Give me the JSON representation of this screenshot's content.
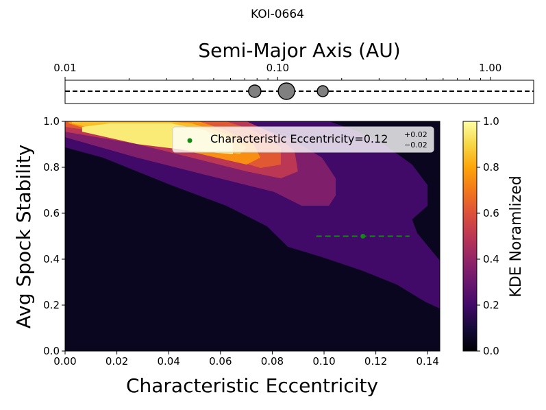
{
  "chart_data": [
    {
      "type": "strip",
      "title": "KOI-0664",
      "xlabel": "Semi-Major Axis (AU)",
      "xscale": "log",
      "xlim": [
        0.01,
        1.6
      ],
      "xticks": [
        0.01,
        {
          "value": 0.1,
          "label": "0.10"
        },
        {
          "value": 1,
          "label": "1.00"
        }
      ],
      "xticks_minor": [
        0.02,
        0.03,
        0.04,
        0.05,
        0.06,
        0.07,
        0.08,
        0.09,
        0.2,
        0.3,
        0.4,
        0.5,
        0.6,
        0.7,
        0.8,
        0.9
      ],
      "x": [
        0.078,
        0.11,
        0.163
      ],
      "sizes": [
        9,
        12,
        8
      ],
      "color": "#808080"
    },
    {
      "type": "contour",
      "xlabel": "Characteristic Eccentricity",
      "ylabel": "Avg Spock Stability",
      "xlim": [
        0,
        0.1447
      ],
      "ylim": [
        0,
        1
      ],
      "xticks": [
        {
          "value": 0,
          "label": "0.00"
        },
        0.02,
        0.04,
        0.06,
        0.08,
        {
          "value": 0.1,
          "label": "0.10"
        },
        0.12,
        0.14
      ],
      "yticks": [
        {
          "value": 0,
          "label": "0.0"
        },
        0.2,
        0.4,
        0.6,
        0.8,
        {
          "value": 1,
          "label": "1.0"
        }
      ],
      "colormap": [
        "#000004",
        "#160b39",
        "#420a68",
        "#6a176e",
        "#932667",
        "#bc3754",
        "#dd513a",
        "#f37819",
        "#fca50a",
        "#f6d746",
        "#fcffa4"
      ],
      "contours": [
        {
          "level": 0.05,
          "x": [
            0,
            0.1447,
            0.1447,
            0
          ],
          "y": [
            0,
            0,
            1,
            1
          ]
        },
        {
          "level": 0.2,
          "x": [
            0,
            0,
            0.0146,
            0.041,
            0.0622,
            0.078,
            0.086,
            0.0992,
            0.115,
            0.128,
            0.139,
            0.1447,
            0.1447,
            0.136,
            0.134,
            0.14,
            0.14,
            0.134,
            0.123,
            0.112,
            0.102
          ],
          "y": [
            1,
            0.887,
            0.842,
            0.722,
            0.633,
            0.543,
            0.454,
            0.409,
            0.349,
            0.29,
            0.215,
            0.185,
            0.394,
            0.513,
            0.573,
            0.633,
            0.722,
            0.812,
            0.901,
            0.961,
            1
          ]
        },
        {
          "level": 0.35,
          "x": [
            0,
            0,
            0.0278,
            0.0542,
            0.0807,
            0.0913,
            0.1019,
            0.1045,
            0.1045,
            0.0992,
            0.086,
            0.0675
          ],
          "y": [
            1,
            0.931,
            0.842,
            0.767,
            0.693,
            0.633,
            0.633,
            0.678,
            0.752,
            0.842,
            0.931,
            1
          ]
        },
        {
          "level": 0.5,
          "x": [
            0,
            0,
            0.0278,
            0.0542,
            0.0701,
            0.0833,
            0.0899,
            0.0886,
            0.0807,
            0.0701
          ],
          "y": [
            1,
            0.955,
            0.901,
            0.827,
            0.782,
            0.752,
            0.782,
            0.872,
            0.946,
            1
          ]
        },
        {
          "level": 0.62,
          "x": [
            0,
            0,
            0.0278,
            0.0622,
            0.0754,
            0.0833,
            0.0833,
            0.0728,
            0.0622
          ],
          "y": [
            1,
            0.976,
            0.931,
            0.842,
            0.797,
            0.812,
            0.887,
            0.961,
            1
          ]
        },
        {
          "level": 0.75,
          "x": [
            0.0013,
            0.0013,
            0.0146,
            0.041,
            0.0701,
            0.0754,
            0.0728,
            0.0622,
            0.0516
          ],
          "y": [
            1,
            0.991,
            0.946,
            0.887,
            0.812,
            0.842,
            0.901,
            0.961,
            1
          ]
        },
        {
          "level": 0.85,
          "x": [
            0.0026,
            0.0026,
            0.0198,
            0.0489,
            0.0675,
            0.0701,
            0.0622,
            0.0489,
            0.0384
          ],
          "y": [
            1,
            0.991,
            0.946,
            0.887,
            0.857,
            0.887,
            0.946,
            0.991,
            1
          ]
        },
        {
          "level": 0.95,
          "x": [
            0.0066,
            0.0172,
            0.041,
            0.0542,
            0.0648,
            0.0648,
            0.0489,
            0.0278,
            0.0066
          ],
          "y": [
            0.976,
            0.991,
            0.991,
            0.961,
            0.901,
            0.857,
            0.872,
            0.901,
            0.955
          ]
        }
      ],
      "series": [
        {
          "name": "Characteristic Eccentricity=0.12",
          "err_plus_label": "+0.02",
          "err_minus_label": "−0.02",
          "color": "#108a10",
          "x": [
            0.115
          ],
          "values": [
            0.5
          ],
          "xerr": [
            0.018
          ]
        }
      ],
      "legend": "upper right",
      "colorbar": {
        "label": "KDE Noramlized",
        "lim": [
          0,
          1
        ],
        "ticks": [
          {
            "value": 0,
            "label": "0.0"
          },
          0.2,
          0.4,
          0.6,
          0.8,
          {
            "value": 1,
            "label": "1.0"
          }
        ]
      }
    }
  ]
}
